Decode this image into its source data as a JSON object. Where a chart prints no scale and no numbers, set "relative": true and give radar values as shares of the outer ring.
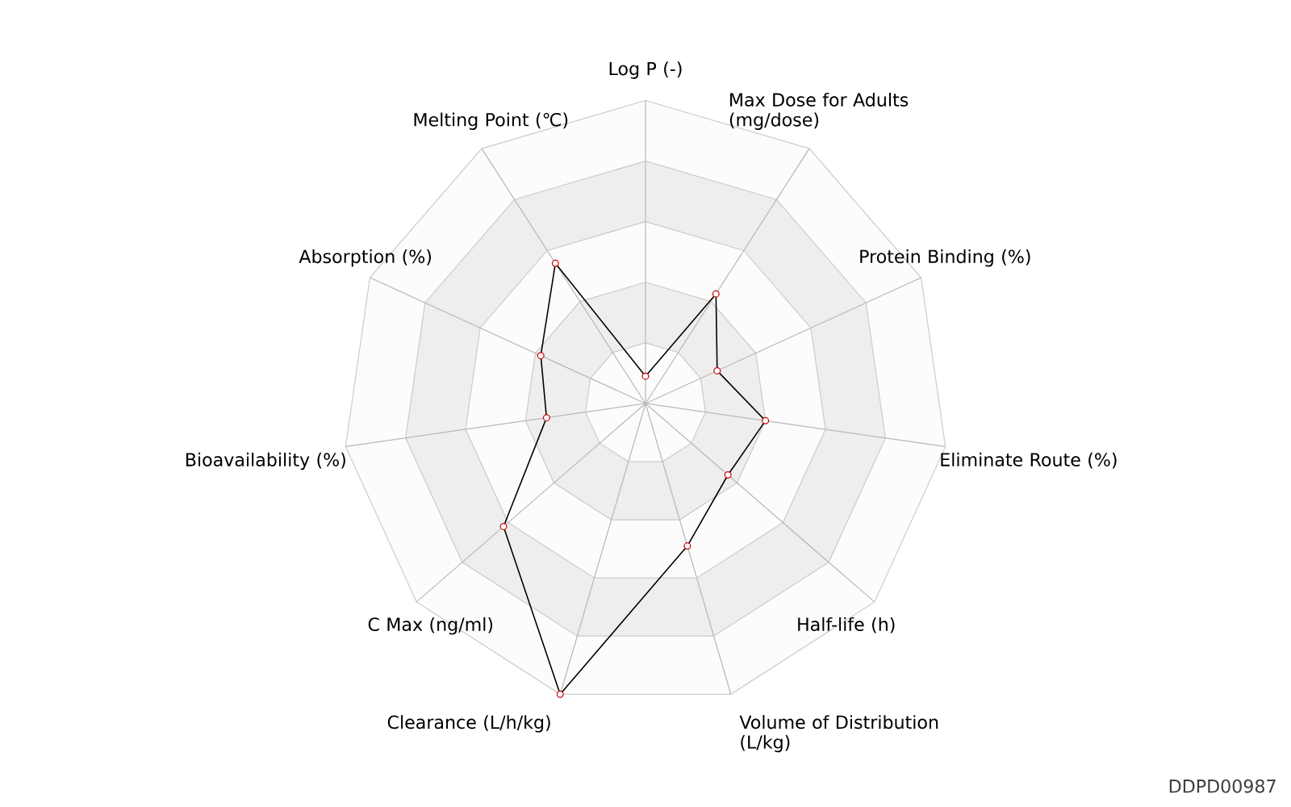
{
  "chart_data": {
    "type": "radar",
    "relative": true,
    "categories": [
      "Log P (-)",
      "Max Dose for Adults (mg/dose)",
      "Protein Binding (%)",
      "Eliminate Route (%)",
      "Half-life (h)",
      "Volume of Distribution (L/kg)",
      "Clearance (L/h/kg)",
      "C Max (ng/ml)",
      "Bioavailability (%)",
      "Absorption (%)",
      "Melting Point (℃)"
    ],
    "series": [
      {
        "color": "#000000",
        "values": [
          0.09,
          0.43,
          0.26,
          0.4,
          0.36,
          0.49,
          1.0,
          0.62,
          0.33,
          0.38,
          0.55
        ]
      }
    ],
    "marker": "circle",
    "annotations": [
      "DDPD00987"
    ]
  }
}
